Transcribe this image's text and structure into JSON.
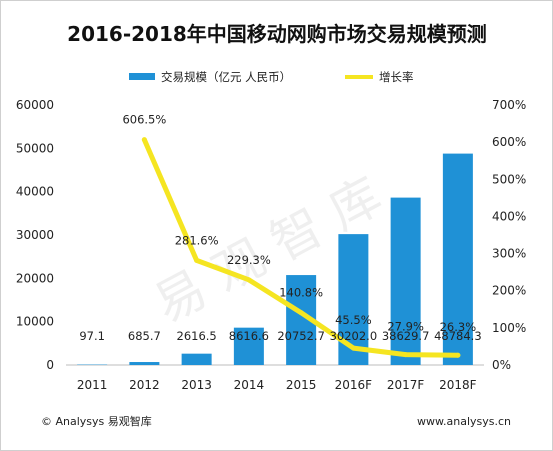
{
  "chart_data": {
    "type": "bar+line",
    "title": "2016-2018年中国移动网购市场交易规模预测",
    "categories": [
      "2011",
      "2012",
      "2013",
      "2014",
      "2015",
      "2016F",
      "2017F",
      "2018F"
    ],
    "series": [
      {
        "name": "交易规模（亿元 人民币）",
        "type": "bar",
        "axis": "left",
        "values": [
          97.1,
          685.7,
          2616.5,
          8616.6,
          20752.7,
          30202.0,
          38629.7,
          48784.3
        ],
        "labels": [
          "97.1",
          "685.7",
          "2616.5",
          "8616.6",
          "20752.7",
          "30202.0",
          "38629.7",
          "48784.3"
        ]
      },
      {
        "name": "增长率",
        "type": "line",
        "axis": "right",
        "values": [
          null,
          606.5,
          281.6,
          229.3,
          140.8,
          45.5,
          27.9,
          26.3
        ],
        "labels": [
          "",
          "606.5%",
          "281.6%",
          "229.3%",
          "140.8%",
          "45.5%",
          "27.9%",
          "26.3%"
        ]
      }
    ],
    "y_left": {
      "lim": [
        0,
        60000
      ],
      "ticks": [
        "0",
        "10000",
        "20000",
        "30000",
        "40000",
        "50000",
        "60000"
      ]
    },
    "y_right": {
      "lim": [
        0,
        700
      ],
      "ticks": [
        "0%",
        "100%",
        "200%",
        "300%",
        "400%",
        "500%",
        "600%",
        "700%"
      ]
    },
    "legend_position": "top",
    "grid": false
  },
  "colors": {
    "bar": "#1f91d6",
    "line": "#f5e521"
  },
  "footer": {
    "left": "© Analysys 易观智库",
    "right": "www.analysys.cn"
  },
  "watermark": "易 观 智 库"
}
